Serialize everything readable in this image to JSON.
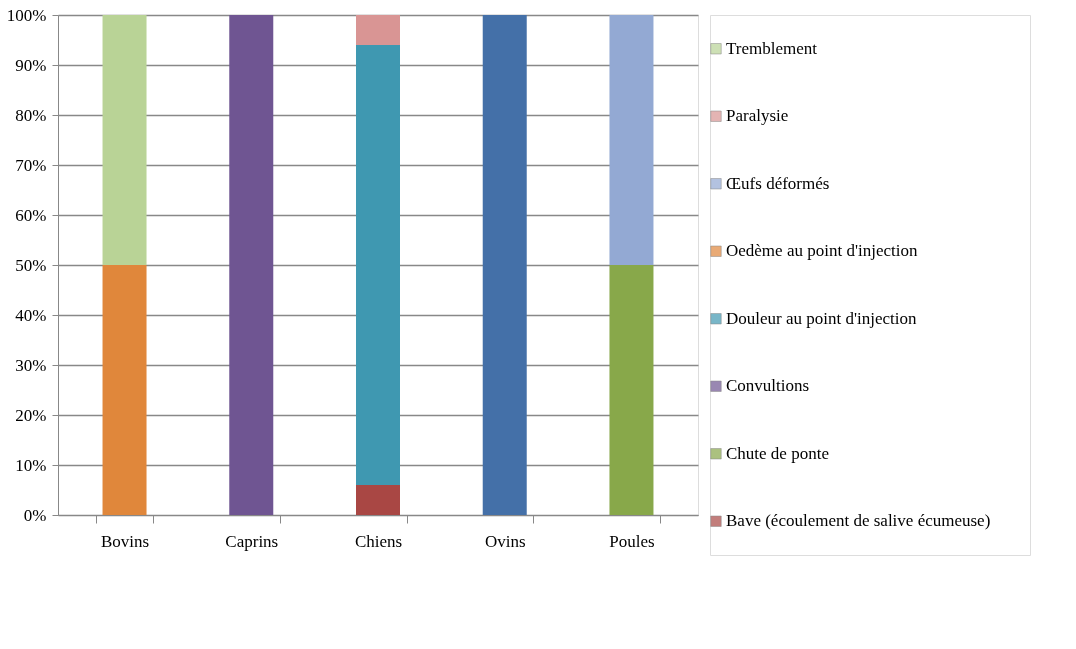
{
  "chart_data": {
    "type": "bar",
    "stacked": true,
    "categories": [
      "Bovins",
      "Caprins",
      "Chiens",
      "Ovins",
      "Poules"
    ],
    "series": [
      {
        "name": "Bave (écoulement de salive écumeuse)",
        "color": "#a94744",
        "values": [
          null,
          null,
          6,
          null,
          null
        ]
      },
      {
        "name": "Chute de ponte",
        "color": "#88a84a",
        "values": [
          null,
          null,
          null,
          null,
          50
        ]
      },
      {
        "name": "Convultions",
        "color": "#6f5592",
        "values": [
          null,
          100,
          null,
          null,
          null
        ]
      },
      {
        "name": "Douleur au point d'injection",
        "color": "#3f98b1",
        "values": [
          null,
          null,
          88,
          null,
          null
        ]
      },
      {
        "name": "Oedème au point d'injection",
        "color": "#e0873b",
        "values": [
          50,
          null,
          null,
          null,
          null
        ]
      },
      {
        "name": "Œufs déformés",
        "color": "#93a9d3",
        "values": [
          null,
          null,
          null,
          null,
          50
        ]
      },
      {
        "name": "Paralysie",
        "color": "#d99594",
        "values": [
          null,
          null,
          6,
          null,
          null
        ]
      },
      {
        "name": "Tremblement",
        "color": "#b9d396",
        "values": [
          50,
          null,
          null,
          null,
          null
        ]
      },
      {
        "color": "#4470a8",
        "values": [
          null,
          null,
          null,
          100,
          null
        ]
      }
    ],
    "ylim": [
      0,
      100
    ],
    "yticks": [
      {
        "value": 0,
        "label": "0%"
      },
      {
        "value": 10,
        "label": "10%"
      },
      {
        "value": 20,
        "label": "20%"
      },
      {
        "value": 30,
        "label": "30%"
      },
      {
        "value": 40,
        "label": "40%"
      },
      {
        "value": 50,
        "label": "50%"
      },
      {
        "value": 60,
        "label": "60%"
      },
      {
        "value": 70,
        "label": "70%"
      },
      {
        "value": 80,
        "label": "80%"
      },
      {
        "value": 90,
        "label": "90%"
      },
      {
        "value": 100,
        "label": "100%"
      }
    ],
    "grid": "y",
    "legend": "right"
  }
}
